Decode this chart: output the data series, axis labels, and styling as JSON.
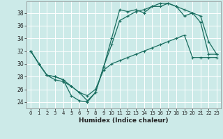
{
  "xlabel": "Humidex (Indice chaleur)",
  "bg_color": "#cceae8",
  "grid_color": "#ffffff",
  "line_color": "#1a6e60",
  "xlim": [
    -0.5,
    23.5
  ],
  "ylim": [
    23.0,
    39.8
  ],
  "yticks": [
    24,
    26,
    28,
    30,
    32,
    34,
    36,
    38
  ],
  "xticks": [
    0,
    1,
    2,
    3,
    4,
    5,
    6,
    7,
    8,
    9,
    10,
    11,
    12,
    13,
    14,
    15,
    16,
    17,
    18,
    19,
    20,
    21,
    22,
    23
  ],
  "line1_x": [
    0,
    1,
    2,
    3,
    4,
    5,
    6,
    7,
    8,
    9,
    10,
    11,
    12,
    13,
    14,
    15,
    16,
    17,
    18,
    19,
    20,
    21,
    22,
    23
  ],
  "line1_y": [
    32,
    30,
    28.2,
    28,
    27.5,
    25,
    24.2,
    24,
    25.5,
    29.5,
    34,
    38.5,
    38.2,
    38.5,
    38,
    39,
    39,
    39.5,
    39,
    38.5,
    38,
    36.5,
    31.5,
    31.5
  ],
  "line2_x": [
    0,
    1,
    2,
    3,
    4,
    5,
    6,
    7,
    8,
    9,
    10,
    11,
    12,
    13,
    14,
    15,
    16,
    17,
    18,
    19,
    20,
    21,
    22,
    23
  ],
  "line2_y": [
    32,
    30,
    28.2,
    27.5,
    27.2,
    26.5,
    25.5,
    24.2,
    25.5,
    29.5,
    33,
    36.8,
    37.5,
    38.2,
    38.5,
    39,
    39.5,
    39.5,
    39,
    37.5,
    38,
    37.5,
    33.5,
    31.5
  ],
  "line3_x": [
    0,
    1,
    2,
    3,
    4,
    5,
    6,
    7,
    8,
    9,
    10,
    11,
    12,
    13,
    14,
    15,
    16,
    17,
    18,
    19,
    20,
    21,
    22,
    23
  ],
  "line3_y": [
    32,
    30,
    28.2,
    28,
    27.5,
    26.5,
    25.5,
    25,
    26,
    29,
    30,
    30.5,
    31,
    31.5,
    32,
    32.5,
    33,
    33.5,
    34,
    34.5,
    31,
    31,
    31,
    31
  ]
}
